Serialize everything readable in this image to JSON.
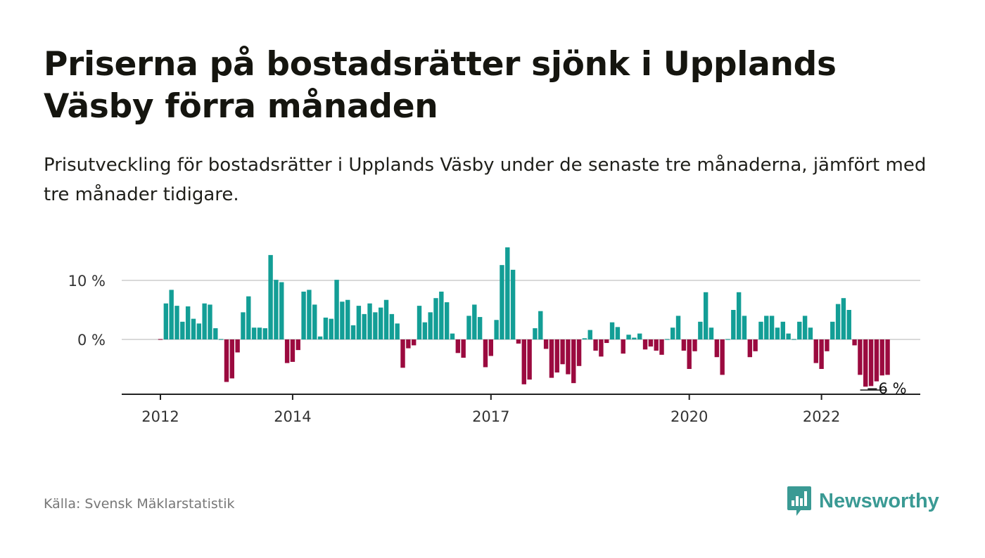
{
  "header": {
    "title": "Priserna på bostadsrätter sjönk i Upplands Väsby förra månaden",
    "subtitle": "Prisutveckling för bostadsrätter i Upplands Väsby under de senaste tre månaderna, jämfört med tre månader tidigare."
  },
  "footer": {
    "source": "Källa: Svensk Mäklarstatistik",
    "brand": "Newsworthy",
    "brand_icon": "bar-chart-speech-bubble-icon"
  },
  "colors": {
    "positive": "#139e96",
    "negative": "#9b0a3f",
    "grid": "#d9d9d9",
    "axis": "#222222",
    "brand": "#3a9a94"
  },
  "chart_data": {
    "type": "bar",
    "x_start": "2012-01",
    "x_interval": "month",
    "x_ticks": [
      {
        "label": "2012",
        "month": "2012-01"
      },
      {
        "label": "2014",
        "month": "2014-01"
      },
      {
        "label": "2017",
        "month": "2017-01"
      },
      {
        "label": "2020",
        "month": "2020-01"
      },
      {
        "label": "2022",
        "month": "2022-01"
      }
    ],
    "y_ticks": [
      {
        "label": "0 %",
        "value": 0
      },
      {
        "label": "10 %",
        "value": 10
      }
    ],
    "ylim": [
      -9.3,
      16
    ],
    "grid": true,
    "end_label": "−6 %",
    "values": [
      -0.1,
      6.1,
      8.4,
      5.7,
      3.0,
      5.6,
      3.5,
      2.7,
      6.1,
      5.9,
      1.9,
      0.0,
      -7.2,
      -6.6,
      -2.2,
      4.6,
      7.3,
      2.0,
      2.0,
      1.9,
      14.3,
      10.1,
      9.7,
      -4.0,
      -3.8,
      -1.8,
      8.1,
      8.4,
      5.9,
      0.5,
      3.7,
      3.5,
      10.1,
      6.4,
      6.7,
      2.4,
      5.7,
      4.3,
      6.1,
      4.6,
      5.4,
      6.7,
      4.3,
      2.7,
      -4.8,
      -1.5,
      -1.0,
      5.7,
      2.9,
      4.6,
      7.0,
      8.1,
      6.3,
      1.0,
      -2.3,
      -3.1,
      4.0,
      5.9,
      3.8,
      -4.7,
      -2.8,
      3.3,
      12.6,
      15.6,
      11.8,
      -0.7,
      -7.6,
      -6.8,
      1.9,
      4.8,
      -1.6,
      -6.5,
      -5.6,
      -4.2,
      -5.9,
      -7.4,
      -4.5,
      0.2,
      1.6,
      -1.9,
      -2.9,
      -0.6,
      2.9,
      2.1,
      -2.4,
      0.8,
      0.3,
      1.0,
      -1.7,
      -1.2,
      -1.9,
      -2.6,
      0.0,
      2.0,
      4.0,
      -1.9,
      -5.0,
      -2.0,
      3.0,
      8.0,
      2.0,
      -3.0,
      -6.0,
      0.0,
      5.0,
      8.0,
      4.0,
      -3.0,
      -2.0,
      3.0,
      4.0,
      4.0,
      2.0,
      3.0,
      1.0,
      0.0,
      3.0,
      4.0,
      2.0,
      -4.0,
      -5.0,
      -2.0,
      3.0,
      6.0,
      7.0,
      5.0,
      -1.0,
      -6.0,
      -8.0,
      -7.9,
      -7.1,
      -6.1,
      -6.0
    ]
  }
}
